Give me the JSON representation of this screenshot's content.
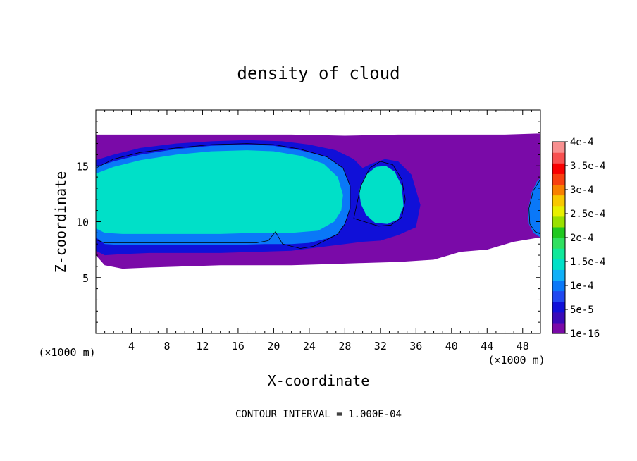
{
  "chart_data": {
    "type": "heatmap",
    "title": "density of cloud",
    "xlabel": "X-coordinate",
    "ylabel": "Z-coordinate",
    "x_unit": "(×1000 m)",
    "y_unit": "(×1000 m)",
    "xlim": [
      0,
      50
    ],
    "ylim": [
      0,
      20
    ],
    "x_ticks": [
      4,
      8,
      12,
      16,
      20,
      24,
      28,
      32,
      36,
      40,
      44,
      48
    ],
    "y_ticks": [
      5,
      10,
      15
    ],
    "footer": "CONTOUR INTERVAL = 1.000E-04",
    "colorbar": {
      "labels": [
        {
          "value": 1e-16,
          "text": "1e-16"
        },
        {
          "value": 5e-05,
          "text": "5e-5"
        },
        {
          "value": 0.0001,
          "text": "1e-4"
        },
        {
          "value": 0.00015,
          "text": "1.5e-4"
        },
        {
          "value": 0.0002,
          "text": "2e-4"
        },
        {
          "value": 0.00025,
          "text": "2.5e-4"
        },
        {
          "value": 0.0003,
          "text": "3e-4"
        },
        {
          "value": 0.00035,
          "text": "3.5e-4"
        },
        {
          "value": 0.0004,
          "text": "4e-4"
        }
      ],
      "colors": [
        "#7a0aa8",
        "#3a0ab8",
        "#1010d8",
        "#2048f0",
        "#0a78f8",
        "#10b0f8",
        "#00e0c8",
        "#10e89a",
        "#30e060",
        "#20c820",
        "#9ae000",
        "#e8f000",
        "#f8c800",
        "#f88000",
        "#f84010",
        "#f80000",
        "#f85050",
        "#f89090"
      ]
    },
    "regions": [
      {
        "name": "outer-cloud-envelope",
        "level": 1e-06,
        "polygon": [
          [
            0,
            17.8
          ],
          [
            3,
            17.8
          ],
          [
            6,
            17.8
          ],
          [
            10,
            17.8
          ],
          [
            16,
            17.8
          ],
          [
            22,
            17.8
          ],
          [
            28,
            17.7
          ],
          [
            34,
            17.8
          ],
          [
            40,
            17.8
          ],
          [
            46,
            17.8
          ],
          [
            50,
            17.9
          ],
          [
            50,
            8.6
          ],
          [
            47,
            8.2
          ],
          [
            44,
            7.5
          ],
          [
            41,
            7.3
          ],
          [
            38,
            6.6
          ],
          [
            34,
            6.4
          ],
          [
            30,
            6.3
          ],
          [
            26,
            6.2
          ],
          [
            22,
            6.1
          ],
          [
            18,
            6.1
          ],
          [
            14,
            6.1
          ],
          [
            10,
            6.0
          ],
          [
            6,
            5.9
          ],
          [
            3,
            5.8
          ],
          [
            1,
            6.1
          ],
          [
            0,
            7.0
          ]
        ]
      },
      {
        "name": "blue-band",
        "level": 5e-05,
        "polygon": [
          [
            0,
            15.5
          ],
          [
            2,
            16
          ],
          [
            5,
            16.6
          ],
          [
            9,
            17.0
          ],
          [
            13,
            17.2
          ],
          [
            17,
            17.3
          ],
          [
            21,
            17.2
          ],
          [
            24,
            16.9
          ],
          [
            27,
            16.4
          ],
          [
            29,
            15.6
          ],
          [
            30,
            14.8
          ],
          [
            31,
            15.2
          ],
          [
            32.5,
            15.6
          ],
          [
            34,
            15.4
          ],
          [
            35.5,
            14.2
          ],
          [
            36.5,
            11.5
          ],
          [
            36,
            9.5
          ],
          [
            34,
            8.8
          ],
          [
            32,
            8.3
          ],
          [
            30,
            8.2
          ],
          [
            28,
            8.0
          ],
          [
            26,
            7.8
          ],
          [
            22,
            7.4
          ],
          [
            18,
            7.3
          ],
          [
            14,
            7.2
          ],
          [
            10,
            7.2
          ],
          [
            6,
            7.2
          ],
          [
            3,
            7.1
          ],
          [
            1,
            7.0
          ],
          [
            0,
            7.4
          ]
        ]
      },
      {
        "name": "light-blue-band",
        "level": 0.0001,
        "polygon": [
          [
            0,
            14.9
          ],
          [
            2,
            15.4
          ],
          [
            5,
            16.0
          ],
          [
            9,
            16.5
          ],
          [
            13,
            16.8
          ],
          [
            17,
            16.9
          ],
          [
            20,
            16.8
          ],
          [
            23,
            16.4
          ],
          [
            26,
            15.8
          ],
          [
            27.8,
            14.8
          ],
          [
            28.6,
            13.2
          ],
          [
            28.6,
            11.2
          ],
          [
            28.0,
            9.8
          ],
          [
            27.2,
            8.9
          ],
          [
            26,
            8.5
          ],
          [
            24,
            8.1
          ],
          [
            22,
            8.0
          ],
          [
            19,
            8.0
          ],
          [
            15,
            7.9
          ],
          [
            10,
            7.9
          ],
          [
            6,
            7.9
          ],
          [
            3,
            7.9
          ],
          [
            1,
            8.0
          ],
          [
            0,
            8.6
          ]
        ]
      },
      {
        "name": "green-core",
        "level": 0.00015,
        "polygon": [
          [
            0,
            14.3
          ],
          [
            2,
            14.9
          ],
          [
            5,
            15.5
          ],
          [
            9,
            16.0
          ],
          [
            13,
            16.3
          ],
          [
            17,
            16.4
          ],
          [
            20,
            16.3
          ],
          [
            23,
            15.9
          ],
          [
            25.6,
            15.2
          ],
          [
            27.2,
            14.0
          ],
          [
            27.8,
            12.4
          ],
          [
            27.6,
            11.0
          ],
          [
            26.8,
            10.0
          ],
          [
            25,
            9.2
          ],
          [
            22,
            9.0
          ],
          [
            18,
            9.0
          ],
          [
            14,
            8.9
          ],
          [
            10,
            8.9
          ],
          [
            6,
            8.9
          ],
          [
            3,
            8.9
          ],
          [
            1,
            9.0
          ],
          [
            0,
            9.4
          ]
        ]
      },
      {
        "name": "secondary-tower",
        "level": 0.00015,
        "polygon": [
          [
            29.6,
            12.8
          ],
          [
            30.4,
            14.2
          ],
          [
            31.5,
            14.9
          ],
          [
            32.6,
            15.0
          ],
          [
            33.6,
            14.5
          ],
          [
            34.4,
            13.2
          ],
          [
            34.6,
            11.4
          ],
          [
            34.0,
            10.2
          ],
          [
            32.8,
            9.8
          ],
          [
            31.4,
            9.9
          ],
          [
            30.4,
            10.6
          ],
          [
            29.8,
            11.6
          ]
        ]
      },
      {
        "name": "right-edge-cell",
        "level": 0.0001,
        "polygon": [
          [
            48.6,
            11.0
          ],
          [
            49.0,
            12.6
          ],
          [
            49.6,
            13.6
          ],
          [
            50,
            13.9
          ],
          [
            50,
            8.6
          ],
          [
            49.2,
            9.0
          ],
          [
            48.7,
            9.8
          ]
        ]
      }
    ],
    "contour_lines": [
      {
        "name": "contour-1e-4-main",
        "level": 0.0001,
        "points": [
          [
            0,
            14.8
          ],
          [
            2,
            15.6
          ],
          [
            5,
            16.2
          ],
          [
            9,
            16.6
          ],
          [
            13,
            16.9
          ],
          [
            17,
            17.0
          ],
          [
            20,
            16.9
          ],
          [
            23,
            16.5
          ],
          [
            26,
            15.8
          ],
          [
            27.8,
            14.8
          ],
          [
            28.6,
            13.2
          ],
          [
            28.6,
            11.2
          ],
          [
            28.0,
            9.8
          ],
          [
            27.2,
            8.9
          ],
          [
            26,
            8.4
          ],
          [
            24.5,
            7.8
          ],
          [
            23,
            7.6
          ],
          [
            21,
            8.0
          ],
          [
            20.2,
            9.1
          ],
          [
            19.4,
            8.3
          ],
          [
            18,
            8.1
          ],
          [
            14,
            8.1
          ],
          [
            10,
            8.1
          ],
          [
            6,
            8.1
          ],
          [
            3,
            8.1
          ],
          [
            1,
            8.1
          ],
          [
            0,
            8.4
          ]
        ]
      },
      {
        "name": "contour-1e-4-tower",
        "level": 0.0001,
        "points": [
          [
            29.0,
            10.3
          ],
          [
            29.8,
            13.2
          ],
          [
            30.8,
            14.8
          ],
          [
            32.0,
            15.4
          ],
          [
            33.4,
            15.1
          ],
          [
            34.4,
            13.8
          ],
          [
            34.8,
            12.0
          ],
          [
            34.4,
            10.4
          ],
          [
            33.2,
            9.7
          ],
          [
            31.8,
            9.6
          ],
          [
            30.6,
            9.9
          ],
          [
            29.0,
            10.3
          ]
        ]
      },
      {
        "name": "contour-1e-4-right",
        "level": 0.0001,
        "points": [
          [
            50,
            13.8
          ],
          [
            49.2,
            12.8
          ],
          [
            48.7,
            11.2
          ],
          [
            48.8,
            9.8
          ],
          [
            49.4,
            9.1
          ],
          [
            50,
            8.9
          ]
        ]
      }
    ]
  }
}
